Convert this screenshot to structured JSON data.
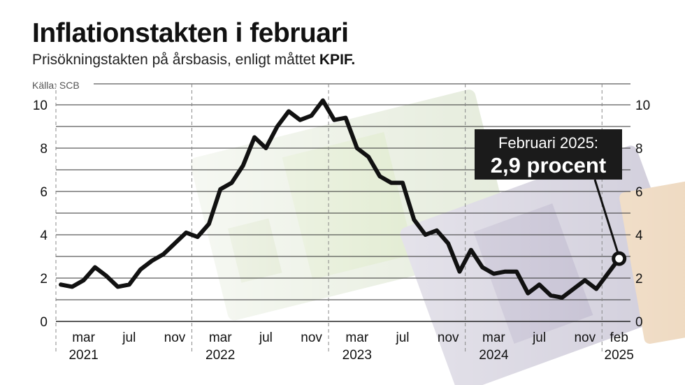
{
  "header": {
    "title": "Inflationstakten i februari",
    "subtitle_main": "Prisökningstakten på årsbasis, enligt måttet",
    "subtitle_bold": "KPIF.",
    "source": "Källa: SCB"
  },
  "callout": {
    "line1": "Februari 2025:",
    "line2": "2,9 procent"
  },
  "chart_data": {
    "type": "line",
    "title": "Inflationstakten i februari",
    "subtitle": "Prisökningstakten på årsbasis, enligt måttet KPIF.",
    "xlabel": "",
    "ylabel": "",
    "ylim": [
      0,
      10
    ],
    "yticks": [
      0,
      2,
      4,
      6,
      8,
      10
    ],
    "grid": true,
    "x": [
      "2021-01",
      "2021-02",
      "2021-03",
      "2021-04",
      "2021-05",
      "2021-06",
      "2021-07",
      "2021-08",
      "2021-09",
      "2021-10",
      "2021-11",
      "2021-12",
      "2022-01",
      "2022-02",
      "2022-03",
      "2022-04",
      "2022-05",
      "2022-06",
      "2022-07",
      "2022-08",
      "2022-09",
      "2022-10",
      "2022-11",
      "2022-12",
      "2023-01",
      "2023-02",
      "2023-03",
      "2023-04",
      "2023-05",
      "2023-06",
      "2023-07",
      "2023-08",
      "2023-09",
      "2023-10",
      "2023-11",
      "2023-12",
      "2024-01",
      "2024-02",
      "2024-03",
      "2024-04",
      "2024-05",
      "2024-06",
      "2024-07",
      "2024-08",
      "2024-09",
      "2024-10",
      "2024-11",
      "2024-12",
      "2025-01",
      "2025-02"
    ],
    "series": [
      {
        "values": [
          1.7,
          1.6,
          1.9,
          2.5,
          2.1,
          1.6,
          1.7,
          2.4,
          2.8,
          3.1,
          3.6,
          4.1,
          3.9,
          4.5,
          6.1,
          6.4,
          7.2,
          8.5,
          8.0,
          9.0,
          9.7,
          9.3,
          9.5,
          10.2,
          9.3,
          9.4,
          8.0,
          7.6,
          6.7,
          6.4,
          6.4,
          4.7,
          4.0,
          4.2,
          3.6,
          2.3,
          3.3,
          2.5,
          2.2,
          2.3,
          2.3,
          1.3,
          1.7,
          1.2,
          1.1,
          1.5,
          1.9,
          1.5,
          2.2,
          2.9
        ],
        "color": "#111111"
      }
    ],
    "highlight": {
      "x": "2025-02",
      "value": 2.9
    },
    "x_tick_labels": [
      {
        "x": "2021-03",
        "label": "mar",
        "year": "2021"
      },
      {
        "x": "2021-07",
        "label": "jul"
      },
      {
        "x": "2021-11",
        "label": "nov"
      },
      {
        "x": "2022-03",
        "label": "mar",
        "year": "2022"
      },
      {
        "x": "2022-07",
        "label": "jul"
      },
      {
        "x": "2022-11",
        "label": "nov"
      },
      {
        "x": "2023-03",
        "label": "mar",
        "year": "2023"
      },
      {
        "x": "2023-07",
        "label": "jul"
      },
      {
        "x": "2023-11",
        "label": "nov"
      },
      {
        "x": "2024-03",
        "label": "mar",
        "year": "2024"
      },
      {
        "x": "2024-07",
        "label": "jul"
      },
      {
        "x": "2024-11",
        "label": "nov"
      },
      {
        "x": "2025-02",
        "label": "feb",
        "year": "2025"
      }
    ],
    "year_boundaries": [
      "2022-01",
      "2023-01",
      "2024-01",
      "2025-01"
    ]
  }
}
